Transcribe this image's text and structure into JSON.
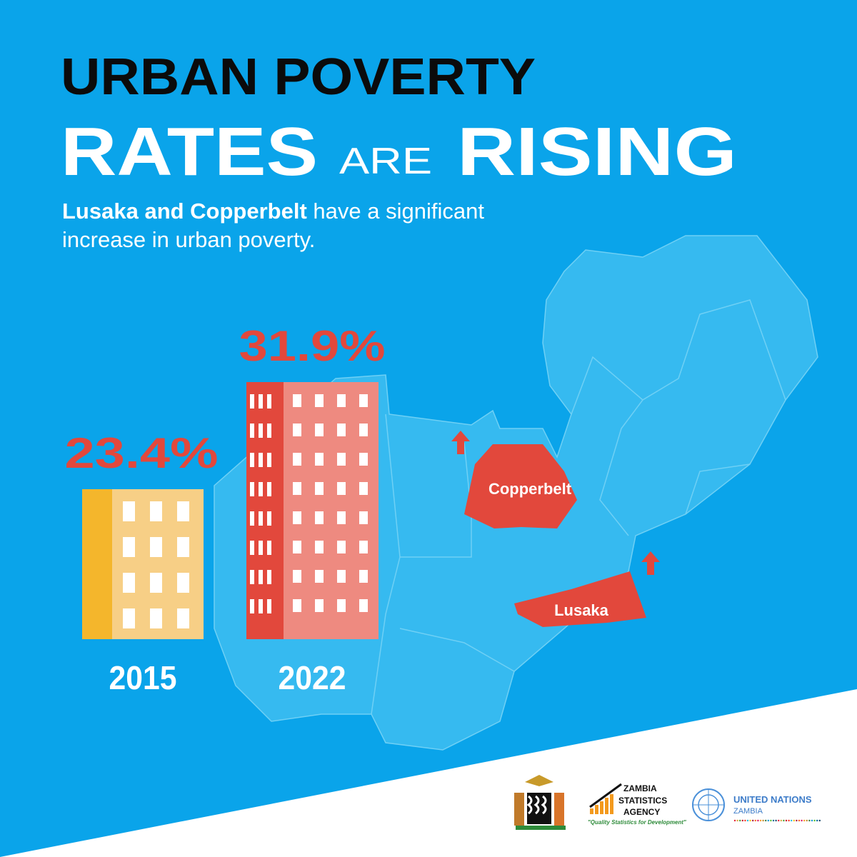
{
  "header": {
    "line1": "URBAN POVERTY",
    "line2a": "RATES",
    "line2b": "ARE",
    "line2c": "RISING"
  },
  "subtitle": {
    "bold": "Lusaka and Copperbelt",
    "rest1": "have a significant",
    "rest2": "increase in urban poverty."
  },
  "stats": [
    {
      "year": "2015",
      "value": "23.4%"
    },
    {
      "year": "2022",
      "value": "31.9%"
    }
  ],
  "map": {
    "regions": [
      "Copperbelt",
      "Lusaka"
    ]
  },
  "logos": {
    "zamstats1": "ZAMBIA",
    "zamstats2": "STATISTICS",
    "zamstats3": "AGENCY",
    "zamstats_tagline": "\"Quality Statistics for Development\"",
    "un1": "UNITED NATIONS",
    "un2": "ZAMBIA"
  }
}
